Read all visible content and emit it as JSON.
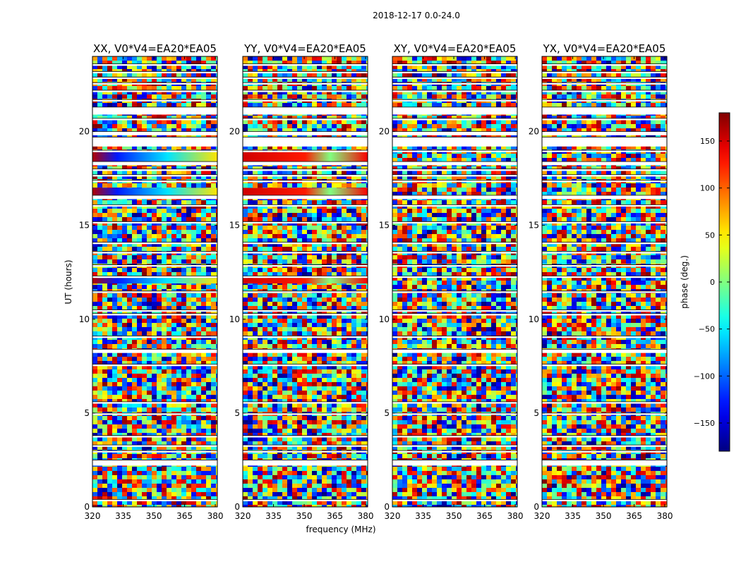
{
  "chart_data": {
    "type": "heatmap",
    "title": "2018-12-17 0.0-24.0",
    "xlabel": "frequency (MHz)",
    "ylabel": "UT (hours)",
    "xlim": [
      320,
      381
    ],
    "ylim": [
      0,
      24
    ],
    "x_ticks": [
      "320",
      "335",
      "350",
      "365",
      "380"
    ],
    "x_tick_values": [
      320,
      335,
      350,
      365,
      380
    ],
    "y_ticks": [
      "0",
      "5",
      "10",
      "15",
      "20"
    ],
    "y_tick_values": [
      0,
      5,
      10,
      15,
      20
    ],
    "panels": [
      {
        "title": "XX, V0*V4=EA20*EA05",
        "polarization": "XX"
      },
      {
        "title": "YY, V0*V4=EA20*EA05",
        "polarization": "YY"
      },
      {
        "title": "XY, V0*V4=EA20*EA05",
        "polarization": "XY"
      },
      {
        "title": "YX, V0*V4=EA20*EA05",
        "polarization": "YX"
      }
    ],
    "colorbar": {
      "label": "phase (deg.)",
      "range": [
        -180,
        180
      ],
      "ticks": [
        "−150",
        "−100",
        "−50",
        "0",
        "50",
        "100",
        "150"
      ],
      "tick_values": [
        -150,
        -100,
        -50,
        0,
        50,
        100,
        150
      ],
      "colormap": "jet"
    },
    "flagged_bands_ut": [
      [
        23.5,
        23.6
      ],
      [
        23.1,
        23.2
      ],
      [
        22.8,
        22.9
      ],
      [
        22.5,
        22.6
      ],
      [
        22.1,
        22.2
      ],
      [
        21.6,
        21.7
      ],
      [
        20.9,
        21.3
      ],
      [
        20.6,
        20.7
      ],
      [
        19.8,
        20.0
      ],
      [
        19.2,
        19.7
      ],
      [
        18.9,
        19.0
      ],
      [
        18.2,
        18.4
      ],
      [
        17.9,
        18.0
      ],
      [
        17.6,
        17.7
      ],
      [
        17.3,
        17.4
      ],
      [
        16.4,
        16.6
      ],
      [
        16.0,
        16.1
      ],
      [
        15.1,
        15.2
      ],
      [
        14.0,
        14.1
      ],
      [
        13.5,
        13.6
      ],
      [
        12.8,
        12.9
      ],
      [
        12.2,
        12.3
      ],
      [
        11.4,
        11.5
      ],
      [
        10.4,
        10.5
      ],
      [
        10.2,
        10.3
      ],
      [
        9.0,
        9.1
      ],
      [
        8.2,
        8.4
      ],
      [
        7.5,
        7.6
      ],
      [
        5.5,
        5.6
      ],
      [
        4.9,
        5.0
      ],
      [
        3.7,
        3.8
      ],
      [
        3.2,
        3.3
      ],
      [
        2.9,
        3.0
      ],
      [
        2.2,
        2.5
      ],
      [
        0.3,
        0.4
      ]
    ]
  }
}
